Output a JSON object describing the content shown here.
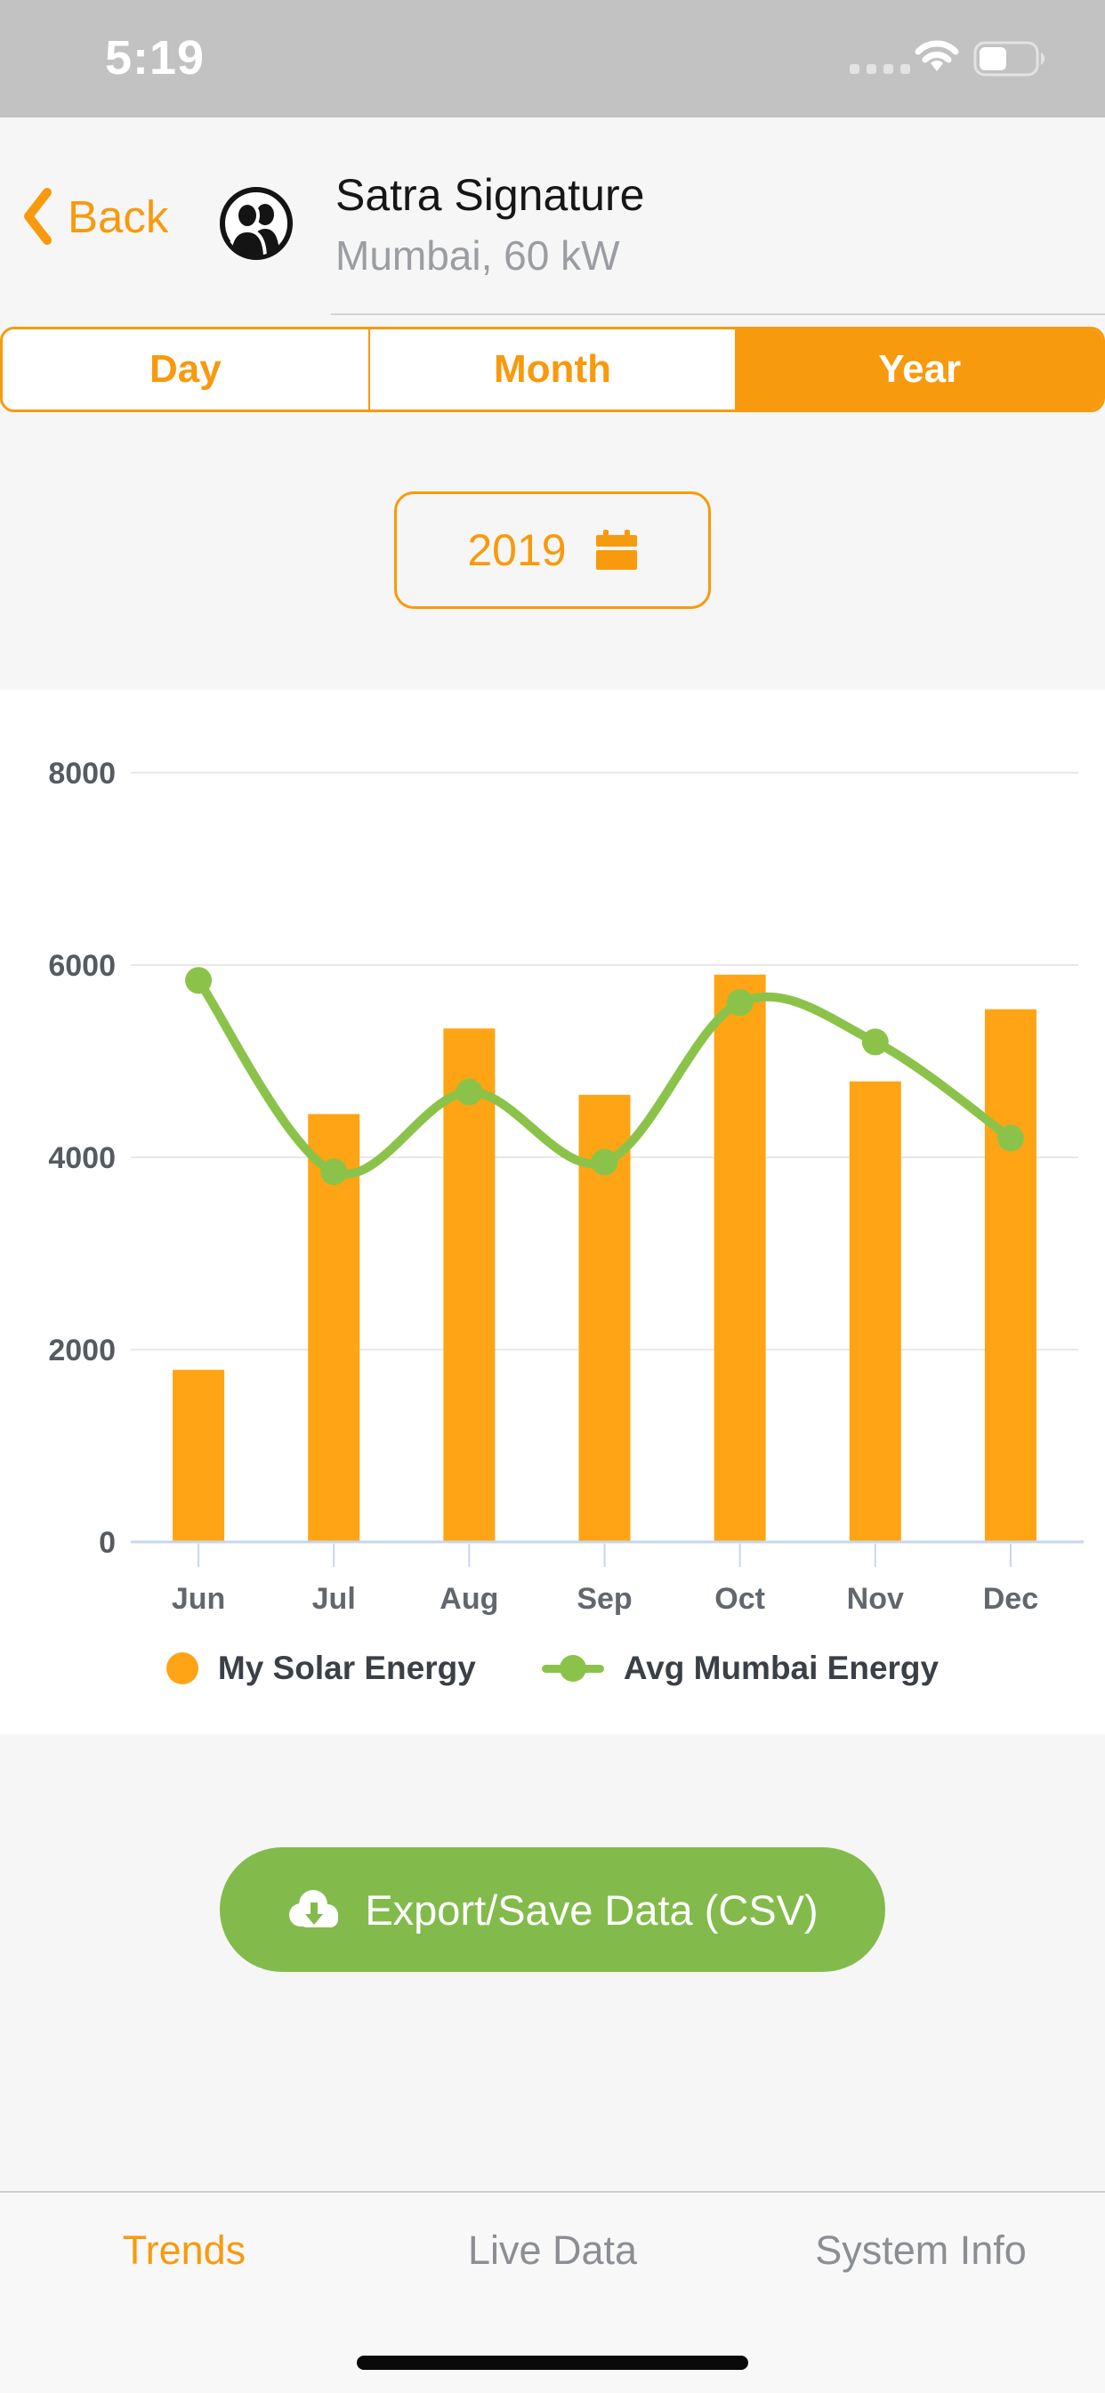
{
  "status_bar": {
    "time": "5:19"
  },
  "header": {
    "back_label": "Back",
    "title": "Satra Signature",
    "subtitle": "Mumbai, 60 kW"
  },
  "period_tabs": {
    "options": [
      {
        "label": "Day",
        "selected": false
      },
      {
        "label": "Month",
        "selected": false
      },
      {
        "label": "Year",
        "selected": true
      }
    ]
  },
  "year_picker": {
    "value": "2019"
  },
  "chart_data": {
    "type": "combo-bar-line",
    "categories": [
      "Jun",
      "Jul",
      "Aug",
      "Sep",
      "Oct",
      "Nov",
      "Dec"
    ],
    "series": [
      {
        "name": "My Solar Energy",
        "type": "bar",
        "color": "#ffa414",
        "values": [
          1790,
          4450,
          5340,
          4650,
          5900,
          4790,
          5540
        ]
      },
      {
        "name": "Avg Mumbai Energy",
        "type": "line",
        "color": "#8bc34a",
        "values": [
          5840,
          3850,
          4680,
          3950,
          5610,
          5200,
          4200
        ]
      }
    ],
    "ylim": [
      0,
      8000
    ],
    "yticks": [
      0,
      2000,
      4000,
      6000,
      8000
    ],
    "grid": true,
    "legend_position": "bottom"
  },
  "export_button": {
    "label": "Export/Save Data (CSV)"
  },
  "tab_bar": {
    "items": [
      {
        "label": "Trends",
        "active": true
      },
      {
        "label": "Live Data",
        "active": false
      },
      {
        "label": "System Info",
        "active": false
      }
    ]
  },
  "colors": {
    "accent_orange": "#f89a0d",
    "bar_orange": "#ffa414",
    "line_green": "#8bc34a",
    "button_green": "#82bb4b",
    "status_bar_bg": "#c2c2c2",
    "page_bg": "#f6f6f6",
    "chart_bg": "#ffffff",
    "gridline": "#e8e8e8",
    "axis_line": "#c9d6ea",
    "tab_inactive": "#8b8e93"
  }
}
